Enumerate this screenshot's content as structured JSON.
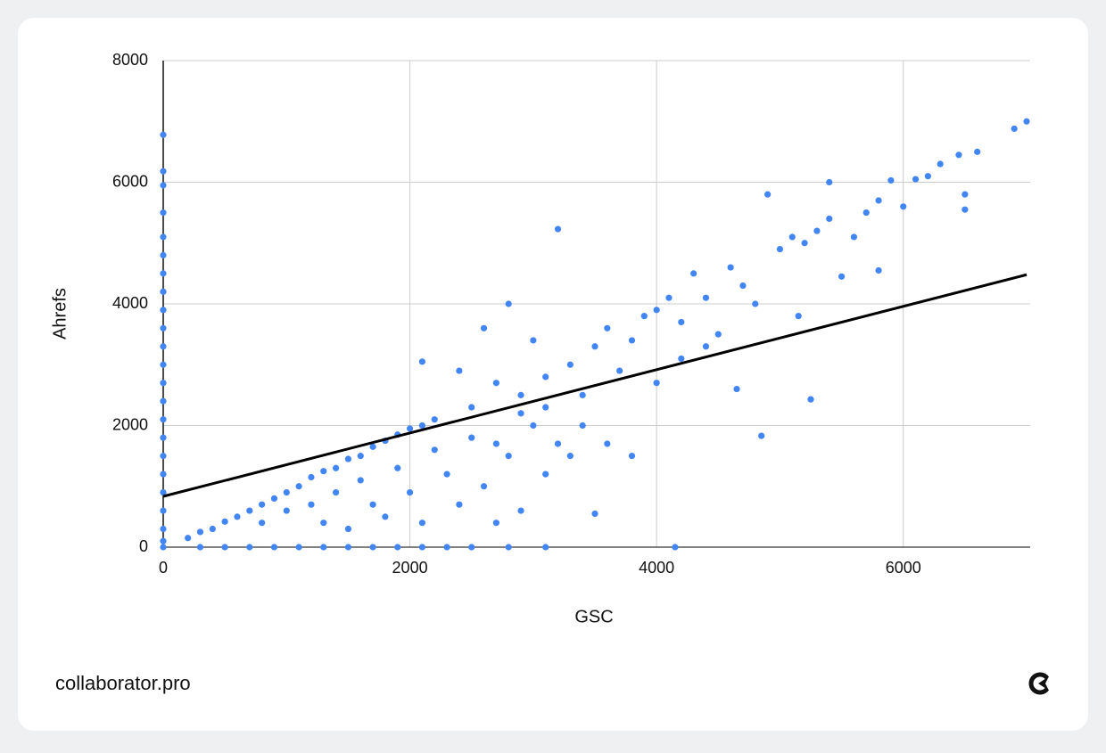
{
  "chart_data": {
    "type": "scatter",
    "xlabel": "GSC",
    "ylabel": "Ahrefs",
    "xlim": [
      0,
      7000
    ],
    "ylim": [
      0,
      8000
    ],
    "xticks": [
      0,
      2000,
      4000,
      6000
    ],
    "yticks": [
      0,
      2000,
      4000,
      6000,
      8000
    ],
    "grid": true,
    "series": [
      {
        "color": "#4285f4",
        "x": [
          0,
          0,
          0,
          0,
          0,
          0,
          0,
          0,
          0,
          0,
          0,
          0,
          0,
          0,
          0,
          0,
          0,
          0,
          0,
          0,
          0,
          0,
          0,
          300,
          500,
          700,
          900,
          1100,
          1300,
          1500,
          1700,
          1900,
          2100,
          2300,
          2500,
          2800,
          3100,
          4150,
          200,
          300,
          400,
          500,
          600,
          700,
          800,
          900,
          1000,
          1100,
          1200,
          1300,
          1400,
          1500,
          1600,
          1700,
          1800,
          1900,
          2000,
          2100,
          2200,
          800,
          1000,
          1200,
          1300,
          1400,
          1500,
          1600,
          1700,
          1800,
          1900,
          2000,
          2100,
          2200,
          2300,
          2400,
          2500,
          2600,
          2700,
          2800,
          2900,
          3000,
          3100,
          3200,
          2100,
          2400,
          2600,
          2700,
          2800,
          2900,
          3000,
          3100,
          3200,
          3300,
          3400,
          3500,
          3500,
          3600,
          3700,
          3800,
          3800,
          3900,
          4000,
          4000,
          4100,
          4200,
          4300,
          4400,
          4500,
          4600,
          4650,
          4700,
          4800,
          4850,
          4900,
          5000,
          5100,
          5150,
          5200,
          5250,
          5300,
          5400,
          5400,
          5500,
          5600,
          5700,
          5800,
          5800,
          5900,
          6000,
          6100,
          6200,
          6300,
          6450,
          6500,
          6500,
          6600,
          6900,
          7000,
          3300,
          3600,
          4200,
          4400,
          2500,
          2700,
          2900,
          3100,
          3400
        ],
        "values": [
          6780,
          6180,
          5950,
          5500,
          5100,
          4800,
          4500,
          4200,
          3900,
          3600,
          3300,
          3000,
          2700,
          2400,
          2100,
          1800,
          1500,
          1200,
          900,
          600,
          300,
          100,
          0,
          0,
          0,
          0,
          0,
          0,
          0,
          0,
          0,
          0,
          0,
          0,
          0,
          0,
          0,
          0,
          150,
          250,
          300,
          420,
          500,
          600,
          700,
          800,
          900,
          1000,
          1150,
          1250,
          1300,
          1450,
          1500,
          1650,
          1750,
          1850,
          1950,
          2000,
          2100,
          400,
          600,
          700,
          400,
          900,
          300,
          1100,
          700,
          500,
          1300,
          900,
          400,
          1600,
          1200,
          700,
          1800,
          1000,
          400,
          1500,
          600,
          2000,
          1200,
          1700,
          3050,
          2900,
          3600,
          2700,
          4000,
          2500,
          3400,
          2800,
          5230,
          3000,
          2500,
          3300,
          550,
          3600,
          2900,
          3400,
          1500,
          3800,
          3900,
          2700,
          4100,
          3700,
          4500,
          4100,
          3500,
          4600,
          2600,
          4300,
          4000,
          1830,
          5800,
          4900,
          5100,
          3800,
          5000,
          2430,
          5200,
          5400,
          6000,
          4450,
          5100,
          5500,
          5700,
          4550,
          6030,
          5600,
          6050,
          6100,
          6300,
          6450,
          5800,
          5550,
          6500,
          6880,
          7000,
          1500,
          1700,
          3100,
          3300,
          2300,
          1700,
          2200,
          2300,
          2000
        ]
      }
    ],
    "trendline": {
      "x": [
        0,
        7000
      ],
      "values": [
        835,
        4480
      ],
      "color": "#000000"
    }
  },
  "footer": {
    "brand": "collaborator.pro"
  }
}
